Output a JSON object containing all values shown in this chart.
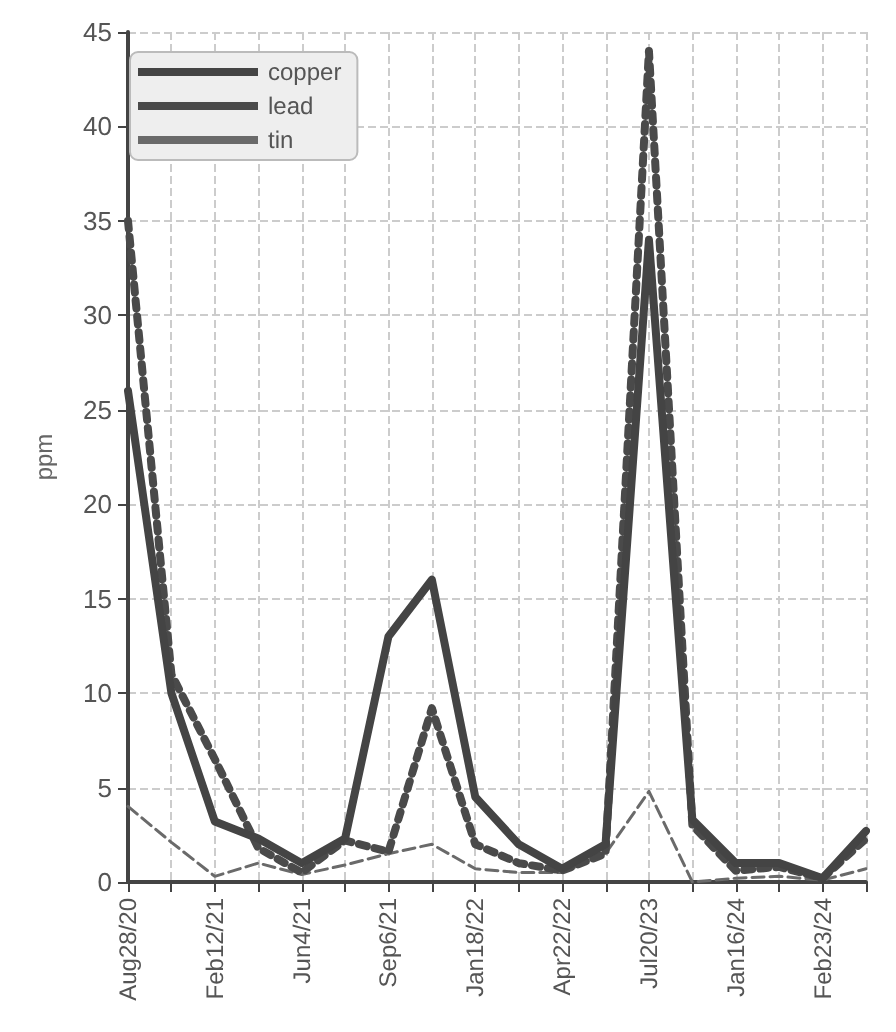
{
  "chart_data": {
    "type": "line",
    "ylabel": "ppm",
    "categories": [
      "Aug28/20",
      null,
      "Feb12/21",
      null,
      "Jun4/21",
      null,
      "Sep6/21",
      null,
      "Jan18/22",
      null,
      "Apr22/22",
      null,
      "Jul20/23",
      null,
      "Jan16/24",
      null,
      "Feb23/24",
      null
    ],
    "series": [
      {
        "name": "copper",
        "color": "#444444",
        "line_style": "solid",
        "values": [
          26,
          10,
          3.2,
          2.3,
          1.0,
          2.3,
          13,
          16,
          4.5,
          2,
          0.7,
          2,
          34,
          3.3,
          1.0,
          1.0,
          0.2,
          2.7
        ]
      },
      {
        "name": "lead",
        "color": "#4a4a4a",
        "line_style": "dotted",
        "values": [
          35,
          11,
          6.5,
          1.8,
          0.5,
          2.2,
          1.6,
          9.2,
          2.0,
          1,
          0.6,
          1.5,
          44,
          3.0,
          0.6,
          0.8,
          0.2,
          2.3
        ]
      },
      {
        "name": "tin",
        "color": "#6a6a6a",
        "line_style": "dashed",
        "values": [
          4,
          2.1,
          0.3,
          1.0,
          0.4,
          0.9,
          1.5,
          2.0,
          0.7,
          0.5,
          0.5,
          1.5,
          4.8,
          0,
          0.2,
          0.3,
          0.1,
          0.7
        ]
      }
    ],
    "ylim": [
      0,
      45
    ],
    "yticks": [
      0,
      5,
      10,
      15,
      20,
      25,
      30,
      35,
      40,
      45
    ],
    "grid": true,
    "legend": "top left",
    "marker": "none"
  }
}
